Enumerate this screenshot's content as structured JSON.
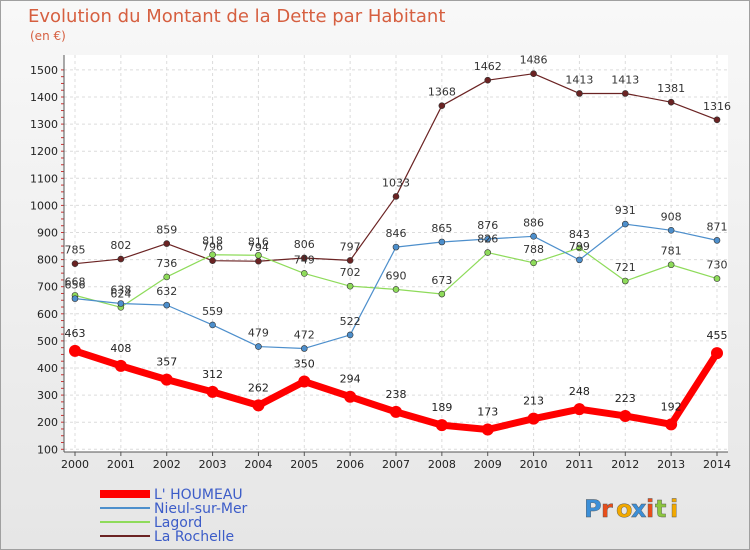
{
  "chart_data": {
    "type": "line",
    "title": "Evolution du Montant de la Dette par Habitant",
    "subtitle": "(en €)",
    "x": [
      "2000",
      "2001",
      "2002",
      "2003",
      "2004",
      "2005",
      "2006",
      "2007",
      "2008",
      "2009",
      "2010",
      "2011",
      "2012",
      "2013",
      "2014"
    ],
    "ylim": [
      100,
      1500
    ],
    "yticks": [
      100,
      200,
      300,
      400,
      500,
      600,
      700,
      800,
      900,
      1000,
      1100,
      1200,
      1300,
      1400,
      1500
    ],
    "grid": true,
    "legend_position": "bottom-left",
    "series": [
      {
        "name": "L' HOUMEAU",
        "color": "#ff0000",
        "values": [
          463,
          408,
          357,
          312,
          262,
          350,
          294,
          238,
          189,
          173,
          213,
          248,
          223,
          192,
          455
        ]
      },
      {
        "name": "Nieul-sur-Mer",
        "color": "#4d8fcc",
        "values": [
          656,
          638,
          632,
          559,
          479,
          472,
          522,
          846,
          865,
          876,
          886,
          799,
          931,
          908,
          871
        ]
      },
      {
        "name": "Lagord",
        "color": "#8edb5a",
        "values": [
          668,
          624,
          736,
          818,
          816,
          749,
          702,
          690,
          673,
          826,
          788,
          843,
          721,
          781,
          730
        ]
      },
      {
        "name": "La Rochelle",
        "color": "#6b2323",
        "values": [
          785,
          802,
          859,
          796,
          794,
          806,
          797,
          1033,
          1368,
          1462,
          1486,
          1413,
          1413,
          1381,
          1316
        ]
      }
    ]
  },
  "branding": {
    "logo_text": "Proxiti",
    "letter_colors": [
      "#3b8fd8",
      "#e84e1b",
      "#f2a900",
      "#3b8fd8",
      "#e84e1b",
      "#8cc63f",
      "#f2a900"
    ]
  }
}
